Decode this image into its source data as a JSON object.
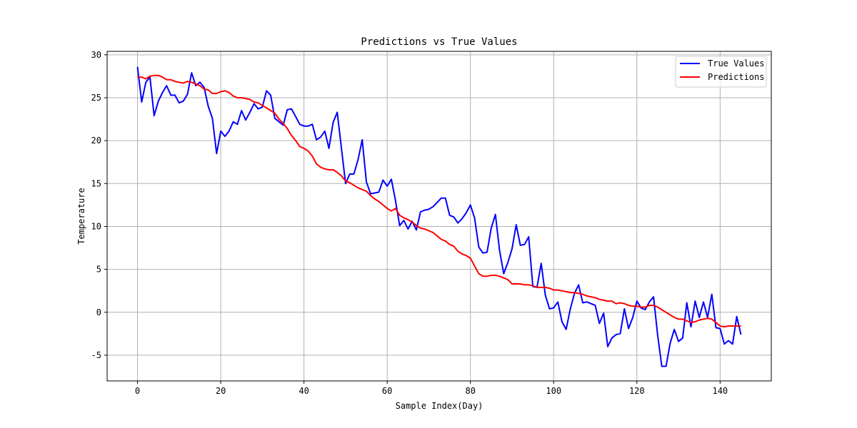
{
  "chart_data": {
    "type": "line",
    "title": "Predictions vs True Values",
    "xlabel": "Sample Index(Day)",
    "ylabel": "Temperature",
    "xlim": [
      -7.3,
      152.3
    ],
    "ylim": [
      -8.0,
      30.4
    ],
    "xticks": [
      0,
      20,
      40,
      60,
      80,
      100,
      120,
      140
    ],
    "yticks": [
      -5,
      0,
      5,
      10,
      15,
      20,
      25,
      30
    ],
    "grid": true,
    "legend": "top-right",
    "series": [
      {
        "name": "True Values",
        "color": "#0000ff",
        "x": [
          0,
          1,
          2,
          3,
          4,
          5,
          6,
          7,
          8,
          9,
          10,
          11,
          12,
          13,
          14,
          15,
          16,
          17,
          18,
          19,
          20,
          21,
          22,
          23,
          24,
          25,
          26,
          27,
          28,
          29,
          30,
          31,
          32,
          33,
          34,
          35,
          36,
          37,
          38,
          39,
          40,
          41,
          42,
          43,
          44,
          45,
          46,
          47,
          48,
          49,
          50,
          51,
          52,
          53,
          54,
          55,
          56,
          57,
          58,
          59,
          60,
          61,
          62,
          63,
          64,
          65,
          66,
          67,
          68,
          69,
          70,
          71,
          72,
          73,
          74,
          75,
          76,
          77,
          78,
          79,
          80,
          81,
          82,
          83,
          84,
          85,
          86,
          87,
          88,
          89,
          90,
          91,
          92,
          93,
          94,
          95,
          96,
          97,
          98,
          99,
          100,
          101,
          102,
          103,
          104,
          105,
          106,
          107,
          108,
          109,
          110,
          111,
          112,
          113,
          114,
          115,
          116,
          117,
          118,
          119,
          120,
          121,
          122,
          123,
          124,
          125,
          126,
          127,
          128,
          129,
          130,
          131,
          132,
          133,
          134,
          135,
          136,
          137,
          138,
          139,
          140,
          141,
          142,
          143,
          144,
          145
        ],
        "y": [
          28.6,
          24.5,
          26.8,
          27.4,
          22.9,
          24.6,
          25.6,
          26.4,
          25.3,
          25.3,
          24.4,
          24.6,
          25.4,
          27.9,
          26.4,
          26.8,
          26.2,
          24.0,
          22.6,
          18.5,
          21.1,
          20.5,
          21.1,
          22.2,
          21.9,
          23.5,
          22.4,
          23.3,
          24.3,
          23.7,
          23.9,
          25.8,
          25.3,
          22.6,
          22.2,
          21.8,
          23.6,
          23.7,
          22.8,
          21.9,
          21.7,
          21.7,
          21.9,
          20.1,
          20.4,
          21.1,
          19.1,
          22.1,
          23.3,
          19.1,
          15.0,
          16.1,
          16.1,
          17.8,
          20.1,
          15.2,
          13.8,
          13.9,
          14.0,
          15.4,
          14.7,
          15.5,
          13.0,
          10.1,
          10.7,
          9.7,
          10.6,
          9.6,
          11.7,
          11.9,
          12.0,
          12.3,
          12.8,
          13.3,
          13.3,
          11.3,
          11.1,
          10.4,
          10.9,
          11.6,
          12.5,
          11.0,
          7.6,
          6.9,
          7.0,
          9.8,
          11.4,
          7.2,
          4.5,
          5.8,
          7.4,
          10.2,
          7.8,
          7.9,
          8.8,
          3.0,
          2.9,
          5.7,
          2.0,
          0.4,
          0.5,
          1.2,
          -1.1,
          -2.0,
          0.4,
          2.2,
          3.2,
          1.1,
          1.2,
          1.0,
          0.8,
          -1.3,
          -0.1,
          -4.0,
          -3.0,
          -2.6,
          -2.5,
          0.4,
          -1.9,
          -0.6,
          1.3,
          0.5,
          0.3,
          1.2,
          1.8,
          -2.7,
          -6.3,
          -6.3,
          -3.6,
          -2.0,
          -3.4,
          -3.0,
          1.1,
          -1.7,
          1.3,
          -0.6,
          1.2,
          -0.6,
          2.1,
          -1.8,
          -1.9,
          -3.7,
          -3.3,
          -3.7,
          -0.5,
          -2.6
        ]
      },
      {
        "name": "Predictions",
        "color": "#ff0000",
        "x": [
          0,
          1,
          2,
          3,
          4,
          5,
          6,
          7,
          8,
          9,
          10,
          11,
          12,
          13,
          14,
          15,
          16,
          17,
          18,
          19,
          20,
          21,
          22,
          23,
          24,
          25,
          26,
          27,
          28,
          29,
          30,
          31,
          32,
          33,
          34,
          35,
          36,
          37,
          38,
          39,
          40,
          41,
          42,
          43,
          44,
          45,
          46,
          47,
          48,
          49,
          50,
          51,
          52,
          53,
          54,
          55,
          56,
          57,
          58,
          59,
          60,
          61,
          62,
          63,
          64,
          65,
          66,
          67,
          68,
          69,
          70,
          71,
          72,
          73,
          74,
          75,
          76,
          77,
          78,
          79,
          80,
          81,
          82,
          83,
          84,
          85,
          86,
          87,
          88,
          89,
          90,
          91,
          92,
          93,
          94,
          95,
          96,
          97,
          98,
          99,
          100,
          101,
          102,
          103,
          104,
          105,
          106,
          107,
          108,
          109,
          110,
          111,
          112,
          113,
          114,
          115,
          116,
          117,
          118,
          119,
          120,
          121,
          122,
          123,
          124,
          125,
          126,
          127,
          128,
          129,
          130,
          131,
          132,
          133,
          134,
          135,
          136,
          137,
          138,
          139,
          140,
          141,
          142,
          143,
          144,
          145
        ],
        "y": [
          27.4,
          27.4,
          27.2,
          27.5,
          27.6,
          27.6,
          27.4,
          27.1,
          27.1,
          26.9,
          26.8,
          26.7,
          26.9,
          26.8,
          26.6,
          26.4,
          26.0,
          25.9,
          25.5,
          25.5,
          25.7,
          25.8,
          25.6,
          25.2,
          25.0,
          25.0,
          24.9,
          24.8,
          24.5,
          24.4,
          24.1,
          23.8,
          23.5,
          23.2,
          22.5,
          22.0,
          21.4,
          20.6,
          20.0,
          19.3,
          19.1,
          18.8,
          18.2,
          17.3,
          16.9,
          16.7,
          16.6,
          16.6,
          16.3,
          15.9,
          15.3,
          15.1,
          14.8,
          14.5,
          14.3,
          14.1,
          13.6,
          13.2,
          12.9,
          12.5,
          12.1,
          11.8,
          12.1,
          11.3,
          11.0,
          10.8,
          10.5,
          10.1,
          9.8,
          9.7,
          9.5,
          9.3,
          8.9,
          8.5,
          8.3,
          7.9,
          7.7,
          7.1,
          6.8,
          6.6,
          6.3,
          5.4,
          4.5,
          4.2,
          4.2,
          4.3,
          4.3,
          4.2,
          4.0,
          3.8,
          3.3,
          3.3,
          3.3,
          3.2,
          3.2,
          3.1,
          2.9,
          2.9,
          2.9,
          2.8,
          2.6,
          2.6,
          2.5,
          2.4,
          2.3,
          2.3,
          2.2,
          2.1,
          1.9,
          1.8,
          1.7,
          1.5,
          1.4,
          1.3,
          1.3,
          1.0,
          1.1,
          1.0,
          0.8,
          0.7,
          0.7,
          0.6,
          0.6,
          0.8,
          0.8,
          0.6,
          0.3,
          0.0,
          -0.3,
          -0.6,
          -0.8,
          -0.8,
          -1.0,
          -1.2,
          -1.1,
          -0.9,
          -0.8,
          -0.7,
          -0.8,
          -1.2,
          -1.6,
          -1.7,
          -1.6,
          -1.6,
          -1.6,
          -1.6
        ]
      }
    ]
  }
}
